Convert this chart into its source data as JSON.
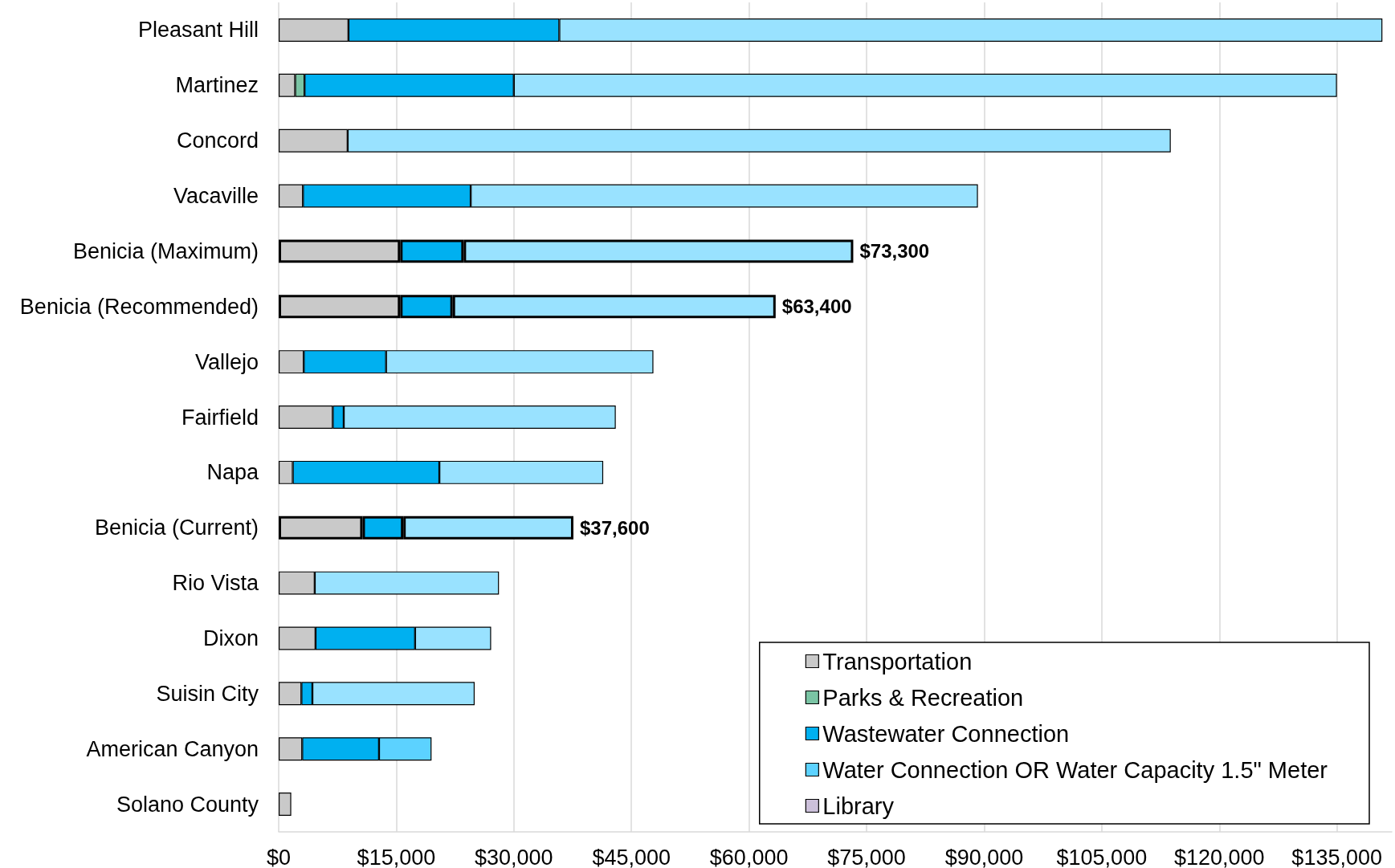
{
  "chart_data": {
    "type": "bar",
    "orientation": "horizontal",
    "stacked": true,
    "categories": [
      "Pleasant Hill",
      "Martinez",
      "Concord",
      "Vacaville",
      "Benicia (Maximum)",
      "Benicia (Recommended)",
      "Vallejo",
      "Fairfield",
      "Napa",
      "Benicia (Current)",
      "Rio Vista",
      "Dixon",
      "Suisin City",
      "American Canyon",
      "Solano County"
    ],
    "series": [
      {
        "name": "Transportation",
        "color": "#c9c9c9",
        "values": [
          8900,
          2100,
          8800,
          3100,
          15500,
          15500,
          3200,
          6900,
          1800,
          10700,
          4600,
          4700,
          2900,
          3000,
          1600
        ]
      },
      {
        "name": "Parks & Recreation",
        "color": "#7ac4a4",
        "values": [
          null,
          1200,
          null,
          null,
          null,
          null,
          null,
          null,
          null,
          null,
          null,
          null,
          null,
          null,
          null
        ]
      },
      {
        "name": "Wastewater Connection",
        "color": "#00b0f0",
        "values": [
          26900,
          26700,
          null,
          21400,
          8100,
          6700,
          10500,
          1400,
          18700,
          5200,
          null,
          12700,
          1400,
          9800,
          null
        ]
      },
      {
        "name": "Water Connection OR Water Capacity 1.5\" Meter",
        "color": "#5cd2ff",
        "colors": [
          "#99e2ff",
          "#99e2ff",
          "#99e2ff",
          "#99e2ff",
          "#99e2ff",
          "#99e2ff",
          "#99e2ff",
          "#99e2ff",
          "#99e2ff",
          "#99e2ff",
          "#99e2ff",
          "#99e2ff",
          "#99e2ff",
          "#5cd2ff",
          null
        ],
        "values": [
          105000,
          105000,
          105000,
          64700,
          49700,
          41200,
          34100,
          34700,
          20900,
          21700,
          23500,
          9700,
          20700,
          6700,
          null
        ]
      },
      {
        "name": "Library",
        "color": "#ccc0da",
        "values": [
          null,
          null,
          null,
          null,
          null,
          null,
          null,
          null,
          null,
          null,
          null,
          null,
          null,
          null,
          null
        ]
      }
    ],
    "totals": [
      null,
      null,
      null,
      null,
      "$73,300",
      "$63,400",
      null,
      null,
      null,
      "$37,600",
      null,
      null,
      null,
      null,
      null
    ],
    "xlim": [
      0,
      142000
    ],
    "xticks": [
      {
        "value": 0,
        "label": "$0"
      },
      {
        "value": 15000,
        "label": "$15,000"
      },
      {
        "value": 30000,
        "label": "$30,000"
      },
      {
        "value": 45000,
        "label": "$45,000"
      },
      {
        "value": 60000,
        "label": "$60,000"
      },
      {
        "value": 75000,
        "label": "$75,000"
      },
      {
        "value": 90000,
        "label": "$90,000"
      },
      {
        "value": 105000,
        "label": "$105,000"
      },
      {
        "value": 120000,
        "label": "$120,000"
      },
      {
        "value": 135000,
        "label": "$135,000"
      }
    ],
    "grid": "x",
    "legend": "bottom right"
  }
}
